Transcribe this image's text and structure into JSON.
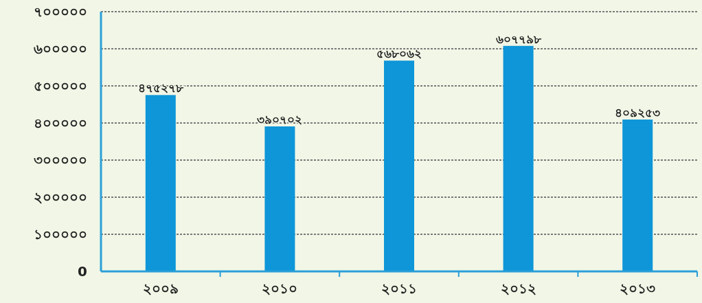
{
  "chart_data": {
    "type": "bar",
    "categories": [
      "২০০৯",
      "২০১০",
      "২০১১",
      "২০১২",
      "২০১৩"
    ],
    "values": [
      475278,
      390702,
      568062,
      607798,
      409253
    ],
    "value_labels": [
      "৪৭৫২৭৮",
      "৩৯০৭০২",
      "৫৬৮০৬২",
      "৬০৭৭৯৮",
      "৪০৯২৫৩"
    ],
    "color": "#0e96d8",
    "ylim": [
      0,
      700000
    ],
    "yticks": [
      0,
      {
        "value": 100000,
        "label": "১০০০০০"
      },
      {
        "value": 200000,
        "label": "২০০০০০"
      },
      {
        "value": 300000,
        "label": "৩০০০০০"
      },
      {
        "value": 400000,
        "label": "৪০০০০০"
      },
      {
        "value": 500000,
        "label": "৫০০০০০"
      },
      {
        "value": 600000,
        "label": "৬০০০০০"
      },
      {
        "value": 700000,
        "label": "৭০০০০০"
      }
    ],
    "grid": "y"
  }
}
